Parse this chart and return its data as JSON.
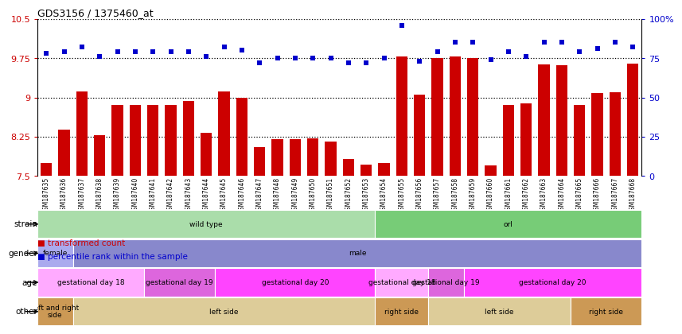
{
  "title": "GDS3156 / 1375460_at",
  "samples": [
    "GSM187635",
    "GSM187636",
    "GSM187637",
    "GSM187638",
    "GSM187639",
    "GSM187640",
    "GSM187641",
    "GSM187642",
    "GSM187643",
    "GSM187644",
    "GSM187645",
    "GSM187646",
    "GSM187647",
    "GSM187648",
    "GSM187649",
    "GSM187650",
    "GSM187651",
    "GSM187652",
    "GSM187653",
    "GSM187654",
    "GSM187655",
    "GSM187656",
    "GSM187657",
    "GSM187658",
    "GSM187659",
    "GSM187660",
    "GSM187661",
    "GSM187662",
    "GSM187663",
    "GSM187664",
    "GSM187665",
    "GSM187666",
    "GSM187667",
    "GSM187668"
  ],
  "bar_values": [
    7.75,
    8.38,
    9.12,
    8.28,
    8.85,
    8.85,
    8.85,
    8.85,
    8.93,
    8.32,
    9.12,
    9.0,
    8.05,
    8.2,
    8.2,
    8.22,
    8.15,
    7.82,
    7.72,
    7.75,
    9.78,
    9.05,
    9.75,
    9.78,
    9.75,
    7.7,
    8.85,
    8.88,
    9.63,
    9.62,
    8.85,
    9.08,
    9.1,
    9.65
  ],
  "dot_values_pct": [
    78,
    79,
    82,
    76,
    79,
    79,
    79,
    79,
    79,
    76,
    82,
    80,
    72,
    75,
    75,
    75,
    75,
    72,
    72,
    75,
    96,
    73,
    79,
    85,
    85,
    74,
    79,
    76,
    85,
    85,
    79,
    81,
    85,
    82
  ],
  "ylim_left": [
    7.5,
    10.5
  ],
  "yticks_left": [
    7.5,
    8.25,
    9.0,
    9.75,
    10.5
  ],
  "ytick_labels_left": [
    "7.5",
    "8.25",
    "9",
    "9.75",
    "10.5"
  ],
  "ylim_right": [
    0,
    100
  ],
  "yticks_right": [
    0,
    25,
    50,
    75,
    100
  ],
  "ytick_labels_right": [
    "0",
    "25",
    "50",
    "75",
    "100%"
  ],
  "bar_color": "#cc0000",
  "dot_color": "#0000cc",
  "background_color": "#ffffff",
  "strain_row": {
    "label": "strain",
    "segments": [
      {
        "text": "wild type",
        "start": 0,
        "end": 19,
        "color": "#aaddaa"
      },
      {
        "text": "orl",
        "start": 19,
        "end": 34,
        "color": "#77cc77"
      }
    ]
  },
  "gender_row": {
    "label": "gender",
    "segments": [
      {
        "text": "female",
        "start": 0,
        "end": 2,
        "color": "#aaaaee"
      },
      {
        "text": "male",
        "start": 2,
        "end": 34,
        "color": "#8888cc"
      }
    ]
  },
  "age_row": {
    "label": "age",
    "segments": [
      {
        "text": "gestational day 18",
        "start": 0,
        "end": 6,
        "color": "#ffaaff"
      },
      {
        "text": "gestational day 19",
        "start": 6,
        "end": 10,
        "color": "#dd66dd"
      },
      {
        "text": "gestational day 20",
        "start": 10,
        "end": 19,
        "color": "#ff44ff"
      },
      {
        "text": "gestational day 18",
        "start": 19,
        "end": 22,
        "color": "#ffaaff"
      },
      {
        "text": "gestational day 19",
        "start": 22,
        "end": 24,
        "color": "#dd66dd"
      },
      {
        "text": "gestational day 20",
        "start": 24,
        "end": 34,
        "color": "#ff44ff"
      }
    ]
  },
  "other_row": {
    "label": "other",
    "segments": [
      {
        "text": "left and right\nside",
        "start": 0,
        "end": 2,
        "color": "#cc9955"
      },
      {
        "text": "left side",
        "start": 2,
        "end": 19,
        "color": "#ddcc99"
      },
      {
        "text": "right side",
        "start": 19,
        "end": 22,
        "color": "#cc9955"
      },
      {
        "text": "left side",
        "start": 22,
        "end": 30,
        "color": "#ddcc99"
      },
      {
        "text": "right side",
        "start": 30,
        "end": 34,
        "color": "#cc9955"
      }
    ]
  },
  "legend": [
    {
      "label": "transformed count",
      "color": "#cc0000"
    },
    {
      "label": "percentile rank within the sample",
      "color": "#0000cc"
    }
  ]
}
